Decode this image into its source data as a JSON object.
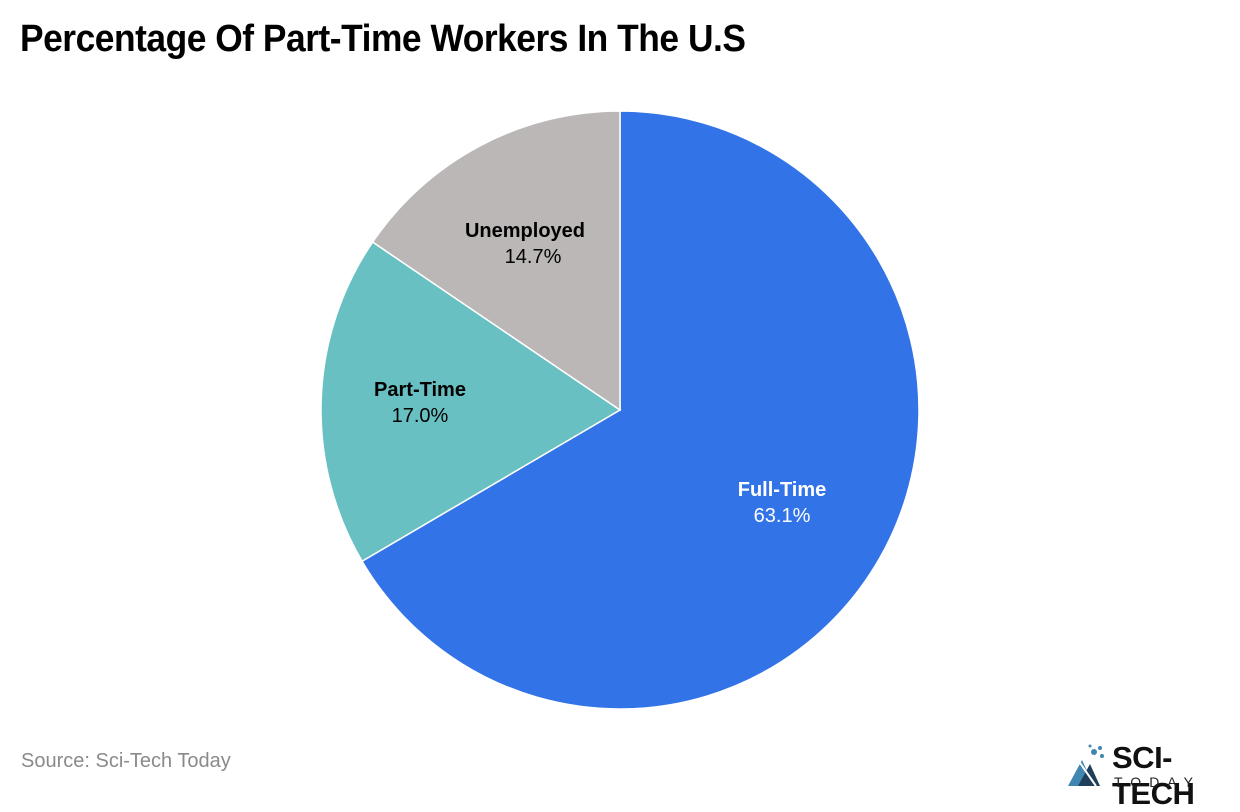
{
  "title": "Percentage Of Part-Time Workers In The U.S",
  "source": "Source: Sci-Tech Today",
  "logo": {
    "main": "SCI-TECH",
    "sub": "TODAY",
    "icon": "sci-tech-logo-icon"
  },
  "colors": {
    "full_time": "#3274E8",
    "part_time": "#69C0C2",
    "unemployed": "#BCB7B7"
  },
  "slices": [
    {
      "label": "Full-Time",
      "value_label": "63.1%"
    },
    {
      "label": "Part-Time",
      "value_label": "17.0%"
    },
    {
      "label": "Unemployed",
      "value_label": "14.7%"
    }
  ],
  "chart_data": {
    "type": "pie",
    "title": "Percentage Of Part-Time Workers In The U.S",
    "categories": [
      "Full-Time",
      "Part-Time",
      "Unemployed"
    ],
    "values": [
      63.1,
      17.0,
      14.7
    ],
    "colors": [
      "#3274E8",
      "#69C0C2",
      "#BCB7B7"
    ],
    "start_angle": "12 o'clock, clockwise",
    "legend": "none (labels inside slices)",
    "source": "Source: Sci-Tech Today"
  }
}
